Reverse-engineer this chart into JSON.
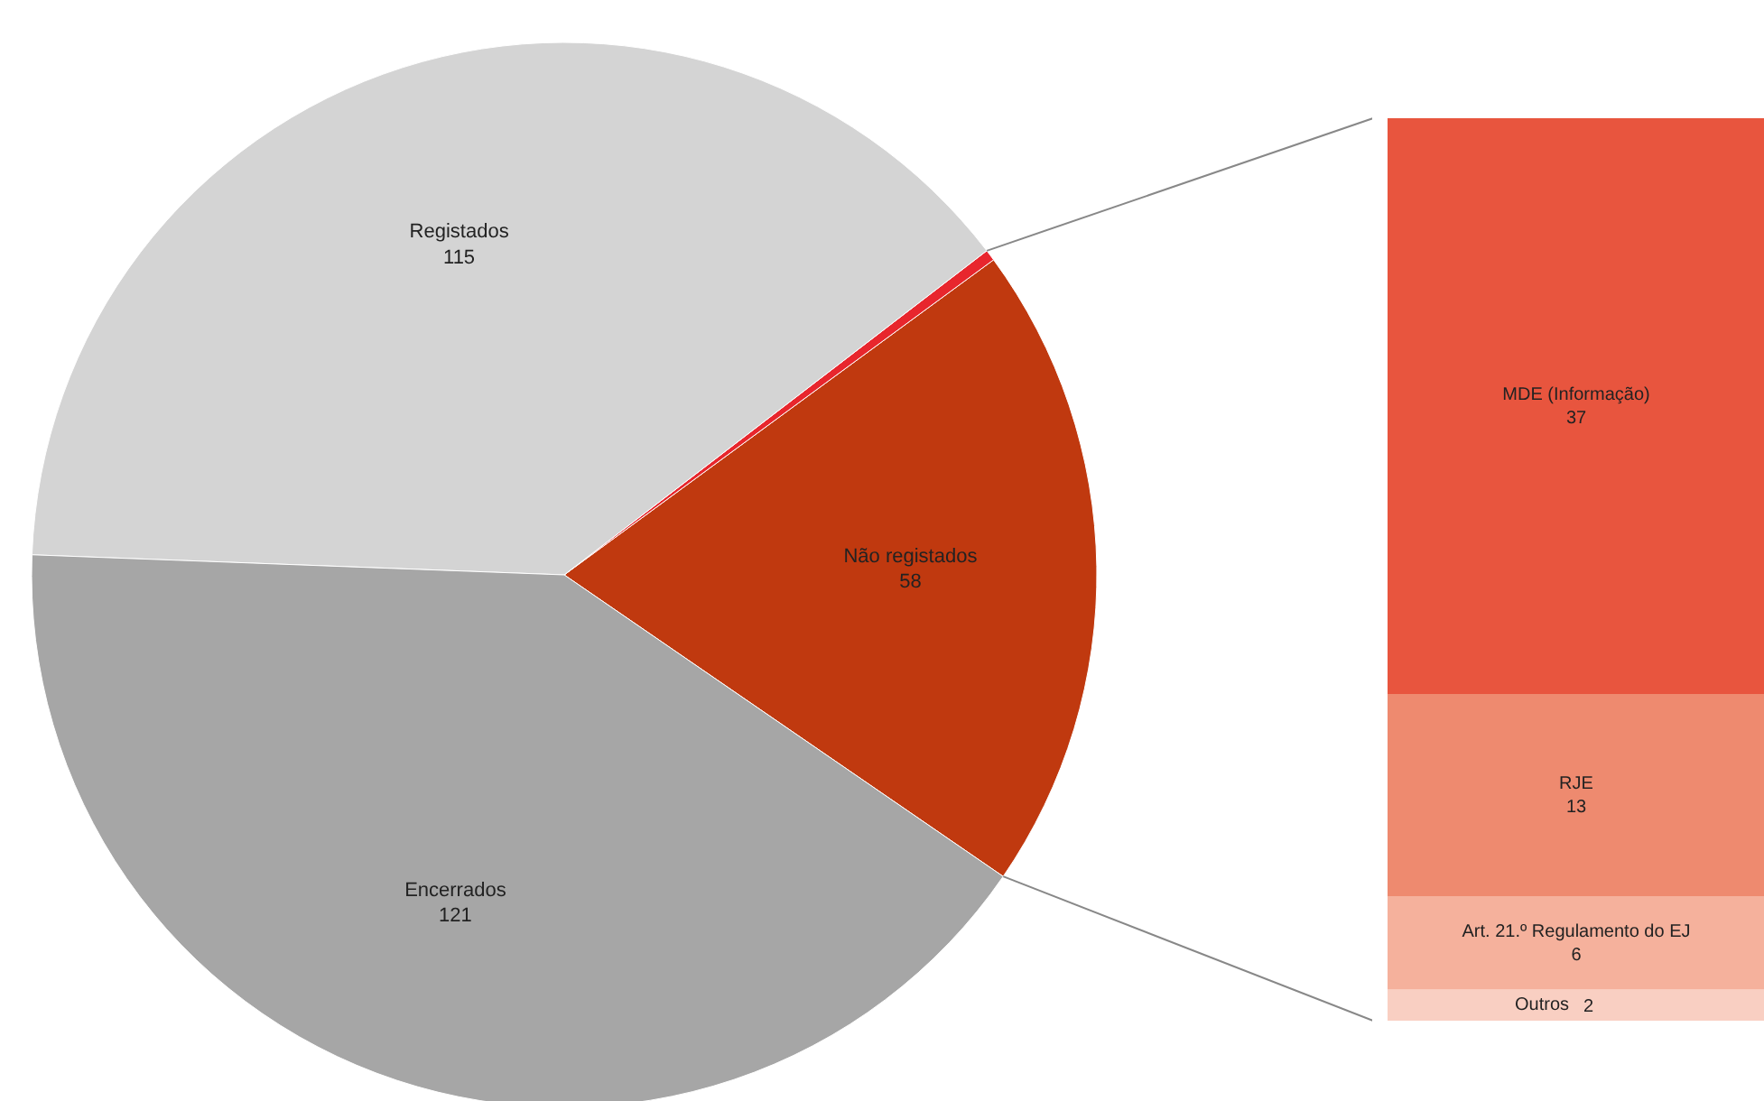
{
  "chart_data": [
    {
      "type": "pie",
      "categories": [
        "Não registados",
        null,
        "Registados",
        "Encerrados"
      ],
      "values": [
        58,
        1,
        115,
        121
      ],
      "colors": [
        "#c0390f",
        "#e8262d",
        "#d4d4d4",
        "#a6a6a6"
      ],
      "value_labels": [
        "58",
        null,
        "115",
        "121"
      ]
    },
    {
      "type": "bar",
      "stacked": true,
      "categories": [
        null
      ],
      "data_labels": true,
      "series": [
        {
          "name": "Outros",
          "color": "#f9cfc2",
          "values": [
            2
          ]
        },
        {
          "name": "Art. 21.º Regulamento do EJ",
          "color": "#f5b19c",
          "values": [
            6
          ]
        },
        {
          "name": "RJE",
          "color": "#ee8a6f",
          "values": [
            13
          ]
        },
        {
          "name": "MDE (Informação)",
          "color": "#e8553e",
          "values": [
            37
          ]
        }
      ]
    }
  ]
}
